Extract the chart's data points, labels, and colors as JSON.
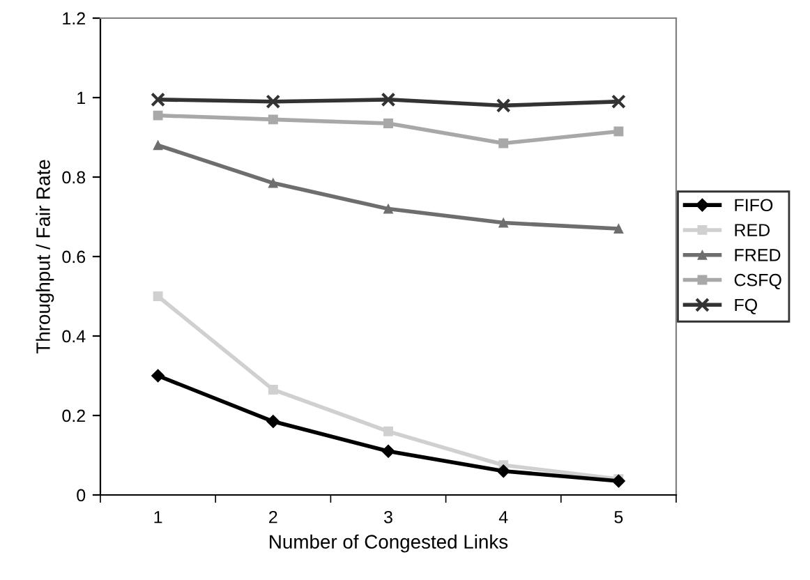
{
  "chart_data": {
    "type": "line",
    "xlabel": "Number of Congested Links",
    "ylabel": "Throughput / Fair Rate",
    "categories": [
      "1",
      "2",
      "3",
      "4",
      "5"
    ],
    "ylim": [
      0,
      1.2
    ],
    "yticks": [
      0,
      0.2,
      0.4,
      0.6,
      0.8,
      1,
      1.2
    ],
    "grid": false,
    "legend": "right",
    "series": [
      {
        "name": "FIFO",
        "color": "#000000",
        "marker": "diamond",
        "values": [
          0.3,
          0.185,
          0.11,
          0.06,
          0.035
        ]
      },
      {
        "name": "RED",
        "color": "#d0d0d0",
        "marker": "square",
        "values": [
          0.5,
          0.265,
          0.16,
          0.075,
          0.04
        ]
      },
      {
        "name": "FRED",
        "color": "#6e6e6e",
        "marker": "triangle",
        "values": [
          0.88,
          0.785,
          0.72,
          0.685,
          0.67
        ]
      },
      {
        "name": "CSFQ",
        "color": "#a8a8a8",
        "marker": "square",
        "values": [
          0.955,
          0.945,
          0.935,
          0.885,
          0.915
        ]
      },
      {
        "name": "FQ",
        "color": "#333333",
        "marker": "cross",
        "values": [
          0.995,
          0.99,
          0.995,
          0.98,
          0.99
        ]
      }
    ]
  }
}
